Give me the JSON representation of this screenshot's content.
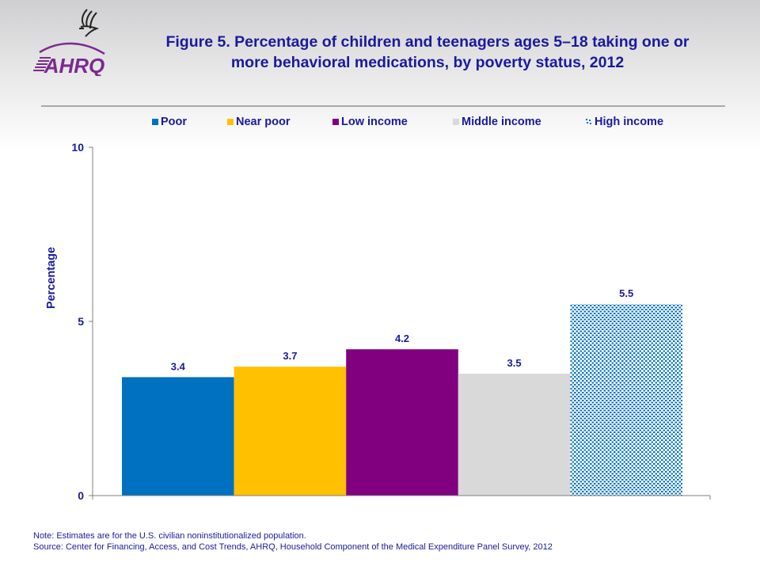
{
  "header": {
    "logo_text": "AHRQ",
    "title_line1": "Figure 5. Percentage of children and teenagers ages 5–18 taking one or",
    "title_line2": "more behavioral medications, by poverty status, 2012"
  },
  "colors": {
    "text": "#1a1a9c",
    "poor": "#0070c0",
    "near_poor": "#ffc000",
    "low_income": "#800080",
    "middle_income": "#d9d9d9",
    "high_income": "#0070c0",
    "logo": "#7b2a8f"
  },
  "chart_data": {
    "type": "bar",
    "title": "Figure 5. Percentage of children and teenagers ages 5–18 taking one or more behavioral medications, by poverty status, 2012",
    "xlabel": "",
    "ylabel": "Percentage",
    "ylim": [
      0,
      10
    ],
    "yticks": [
      0,
      5,
      10
    ],
    "grid": false,
    "legend_position": "top",
    "categories": [
      "Poor",
      "Near poor",
      "Low income",
      "Middle income",
      "High income"
    ],
    "series": [
      {
        "name": "Poor",
        "value": 3.4,
        "label": "3.4",
        "color": "#0070c0",
        "pattern": "solid"
      },
      {
        "name": "Near poor",
        "value": 3.7,
        "label": "3.7",
        "color": "#ffc000",
        "pattern": "solid"
      },
      {
        "name": "Low income",
        "value": 4.2,
        "label": "4.2",
        "color": "#800080",
        "pattern": "solid"
      },
      {
        "name": "Middle income",
        "value": 3.5,
        "label": "3.5",
        "color": "#d9d9d9",
        "pattern": "solid"
      },
      {
        "name": "High income",
        "value": 5.5,
        "label": "5.5",
        "color": "#0070c0",
        "pattern": "dots"
      }
    ]
  },
  "footer": {
    "note": "Note: Estimates are for the U.S. civilian noninstitutionalized population.",
    "source": "Source: Center for Financing, Access, and Cost Trends, AHRQ, Household Component of the Medical Expenditure Panel Survey,  2012"
  }
}
